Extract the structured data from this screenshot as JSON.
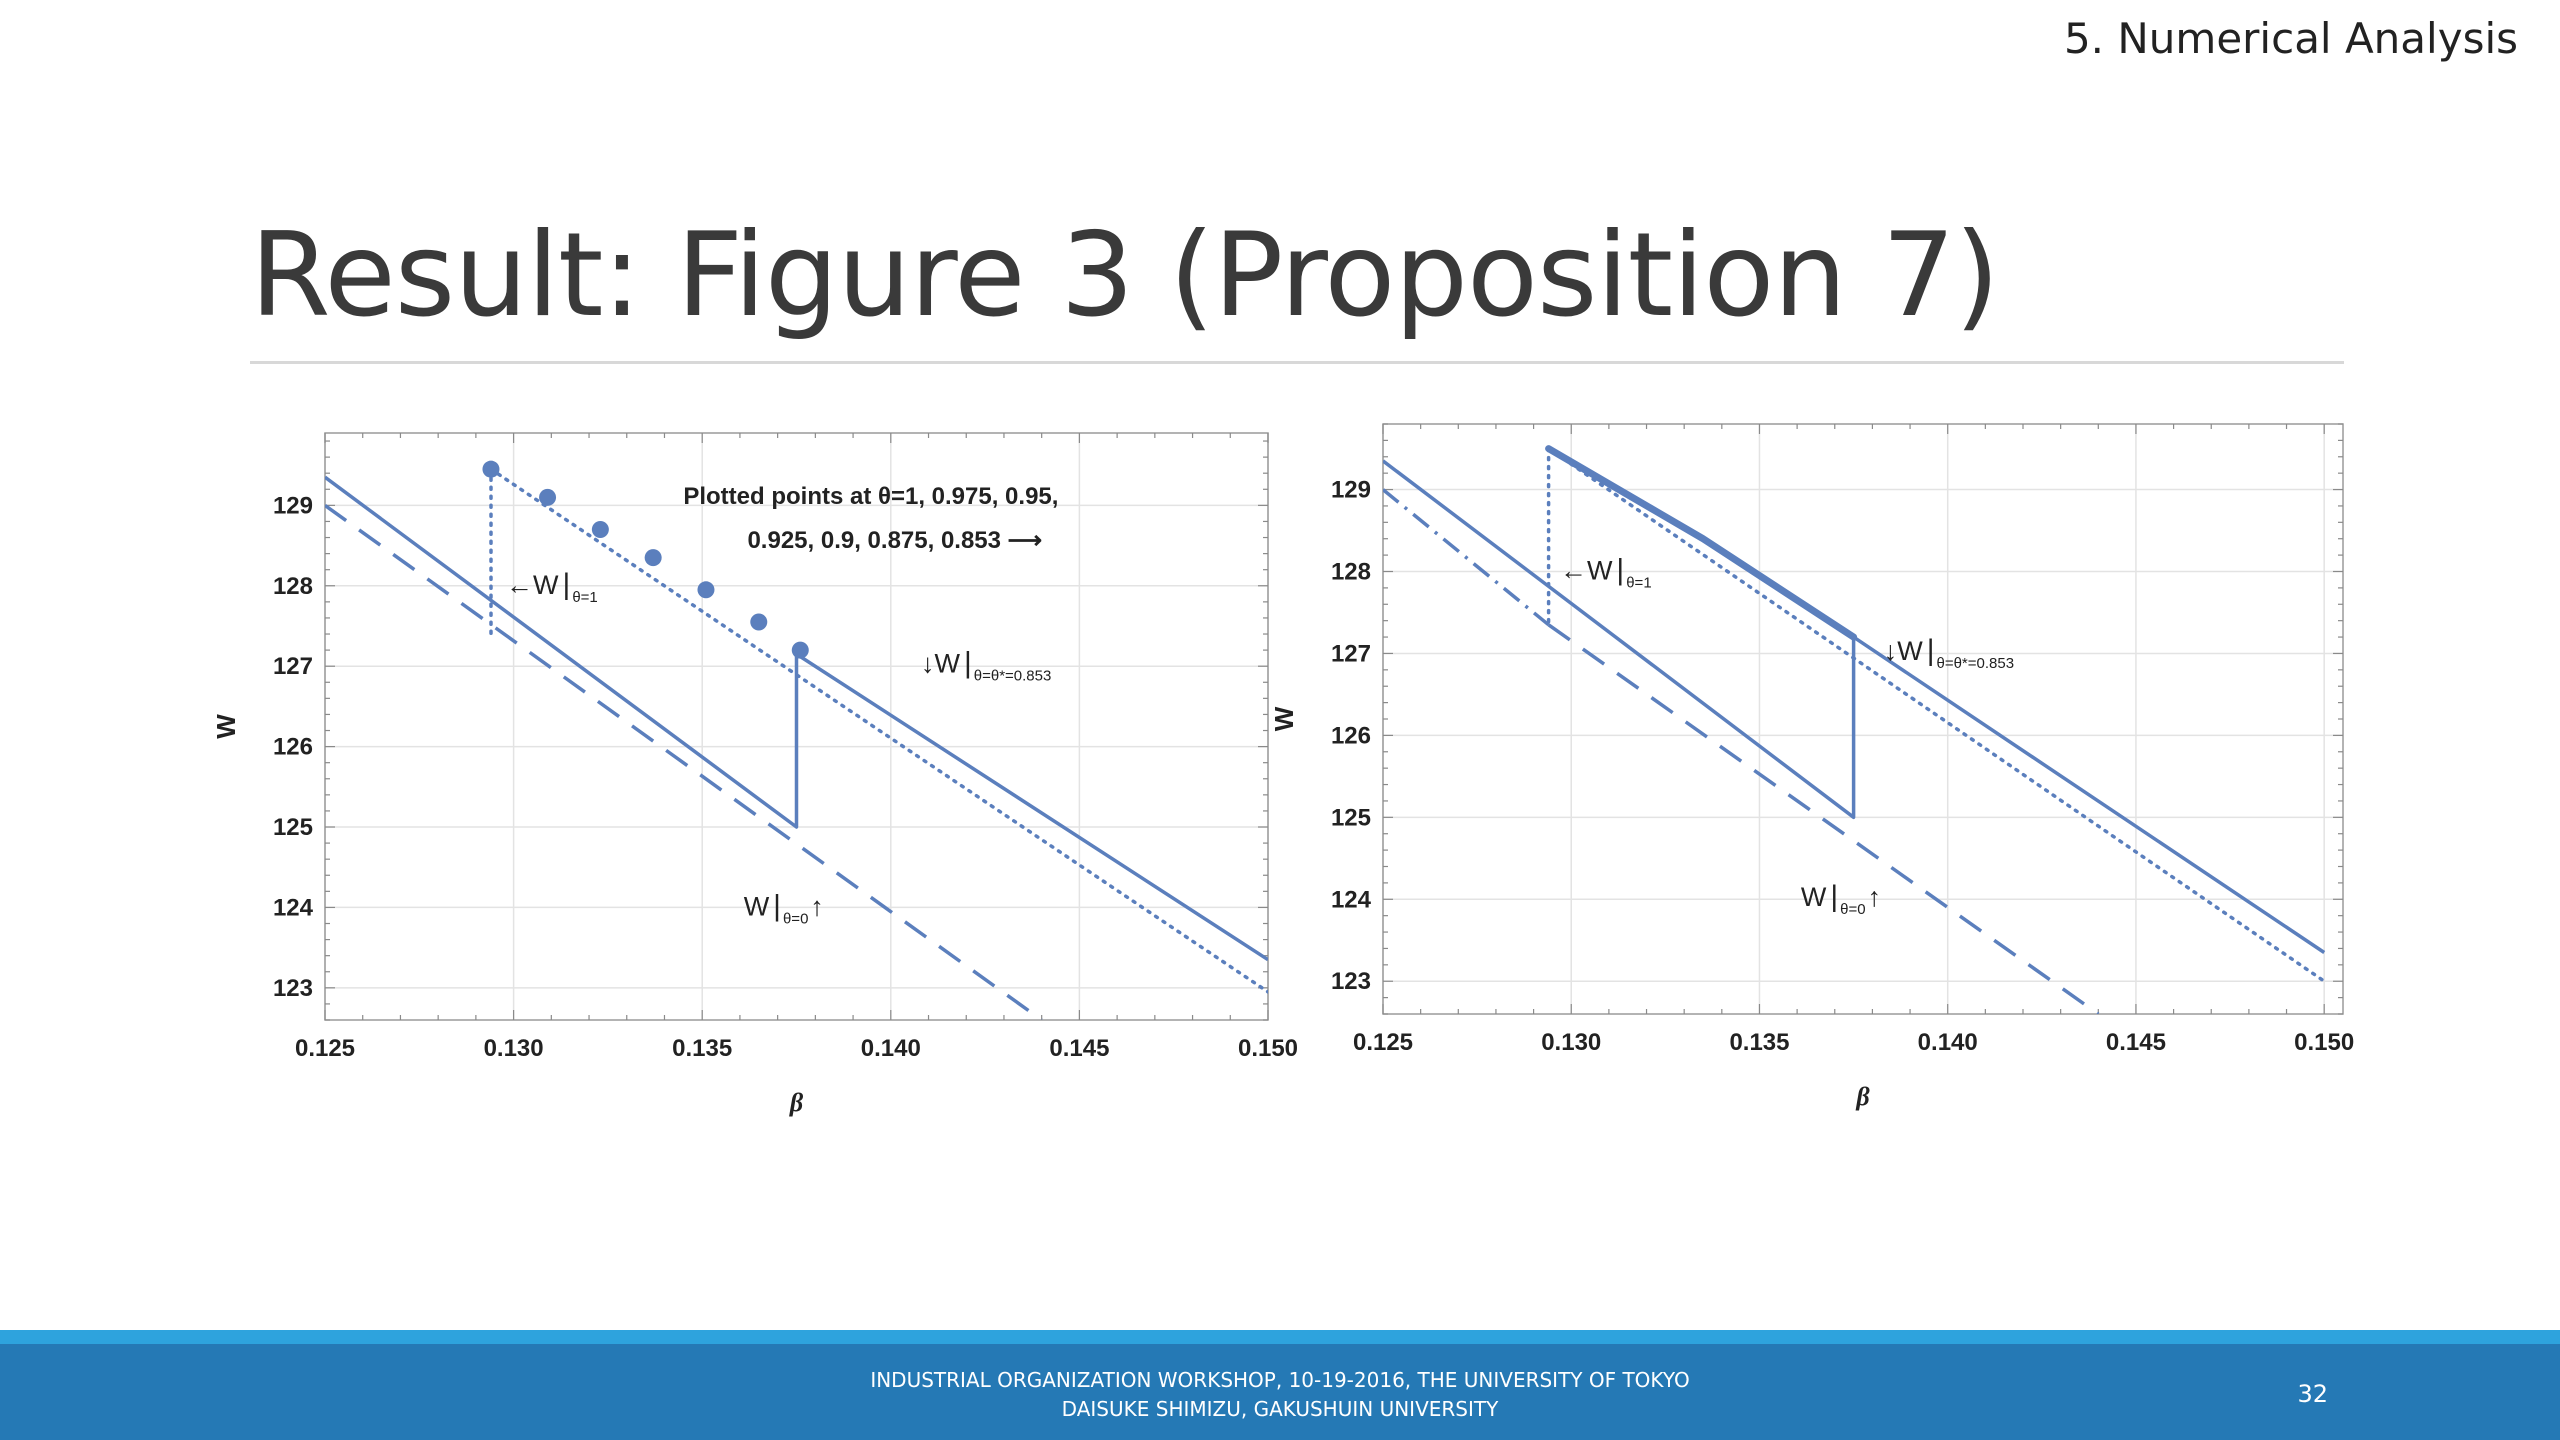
{
  "header": {
    "section": "5. Numerical Analysis",
    "title": "Result: Figure 3 (Proposition 7)"
  },
  "footer": {
    "line1": "INDUSTRIAL ORGANIZATION WORKSHOP, 10-19-2016, THE UNIVERSITY OF TOKYO",
    "line2": "DAISUKE SHIMIZU, GAKUSHUIN UNIVERSITY",
    "page": "32"
  },
  "colors": {
    "series": "#5b7fbd",
    "footer": "#2579b5",
    "stripe": "#2ea3dd"
  },
  "chart_data": [
    {
      "type": "line",
      "xlabel": "β",
      "ylabel": "W",
      "xlim": [
        0.125,
        0.15
      ],
      "ylim": [
        122.6,
        129.9
      ],
      "x_ticks": [
        "0.125",
        "0.130",
        "0.135",
        "0.140",
        "0.145",
        "0.150"
      ],
      "y_ticks": [
        "123",
        "124",
        "125",
        "126",
        "127",
        "128",
        "129"
      ],
      "grid": true,
      "series": [
        {
          "style": "solid",
          "points": [
            [
              0.125,
              129.35
            ],
            [
              0.1375,
              125.0
            ],
            [
              0.1375,
              127.15
            ],
            [
              0.15,
              123.35
            ]
          ]
        },
        {
          "style": "dashed",
          "points": [
            [
              0.125,
              129.0
            ],
            [
              0.144,
              122.6
            ]
          ]
        },
        {
          "style": "dotted",
          "points": [
            [
              0.1294,
              129.45
            ],
            [
              0.1294,
              127.35
            ]
          ]
        },
        {
          "style": "dotted",
          "points": [
            [
              0.1294,
              129.45
            ],
            [
              0.15,
              122.95
            ]
          ]
        },
        {
          "style": "markers",
          "points": [
            [
              0.1294,
              129.45
            ],
            [
              0.1309,
              129.1
            ],
            [
              0.1323,
              128.7
            ],
            [
              0.1337,
              128.35
            ],
            [
              0.1351,
              127.95
            ],
            [
              0.1365,
              127.55
            ],
            [
              0.1376,
              127.2
            ]
          ]
        }
      ],
      "annotations": [
        {
          "text": "Plotted points at θ=1, 0.975, 0.95,",
          "x": 0.1345,
          "y": 129.02,
          "anchor": "start"
        },
        {
          "text": "0.925, 0.9, 0.875, 0.853 ⟶",
          "x": 0.1362,
          "y": 128.47,
          "anchor": "start"
        },
        {
          "text": "←W",
          "x": 0.1298,
          "y": 127.9,
          "anchor": "start",
          "sub": "θ=1"
        },
        {
          "text": "↓W",
          "x": 0.1408,
          "y": 126.92,
          "anchor": "start",
          "sub": "θ=θ*=0.853"
        },
        {
          "text": "W",
          "x": 0.1361,
          "y": 123.9,
          "anchor": "start",
          "sub": "θ=0",
          "suffix": "↑"
        }
      ]
    },
    {
      "type": "line",
      "xlabel": "β",
      "ylabel": "W",
      "xlim": [
        0.125,
        0.1505
      ],
      "ylim": [
        122.6,
        129.8
      ],
      "x_ticks": [
        "0.125",
        "0.130",
        "0.135",
        "0.140",
        "0.145",
        "0.150"
      ],
      "y_ticks": [
        "123",
        "124",
        "125",
        "126",
        "127",
        "128",
        "129"
      ],
      "grid": true,
      "series": [
        {
          "style": "solid",
          "points": [
            [
              0.125,
              129.35
            ],
            [
              0.1375,
              125.0
            ],
            [
              0.1375,
              127.2
            ],
            [
              0.15,
              123.35
            ]
          ]
        },
        {
          "style": "dashdot",
          "points": [
            [
              0.125,
              129.0
            ],
            [
              0.1294,
              127.35
            ]
          ]
        },
        {
          "style": "dashed",
          "points": [
            [
              0.1294,
              127.35
            ],
            [
              0.144,
              122.6
            ]
          ]
        },
        {
          "style": "dotted",
          "points": [
            [
              0.1294,
              129.5
            ],
            [
              0.1294,
              127.35
            ]
          ]
        },
        {
          "style": "dotted",
          "points": [
            [
              0.1294,
              129.5
            ],
            [
              0.15,
              123.0
            ]
          ]
        },
        {
          "style": "thick",
          "points": [
            [
              0.1294,
              129.5
            ],
            [
              0.1335,
              128.4
            ],
            [
              0.1375,
              127.2
            ]
          ]
        }
      ],
      "annotations": [
        {
          "text": "←W",
          "x": 0.1297,
          "y": 127.9,
          "anchor": "start",
          "sub": "θ=1"
        },
        {
          "text": "↓W",
          "x": 0.1383,
          "y": 126.92,
          "anchor": "start",
          "sub": "θ=θ*=0.853"
        },
        {
          "text": "W",
          "x": 0.1361,
          "y": 123.92,
          "anchor": "start",
          "sub": "θ=0",
          "suffix": "↑"
        }
      ]
    }
  ]
}
